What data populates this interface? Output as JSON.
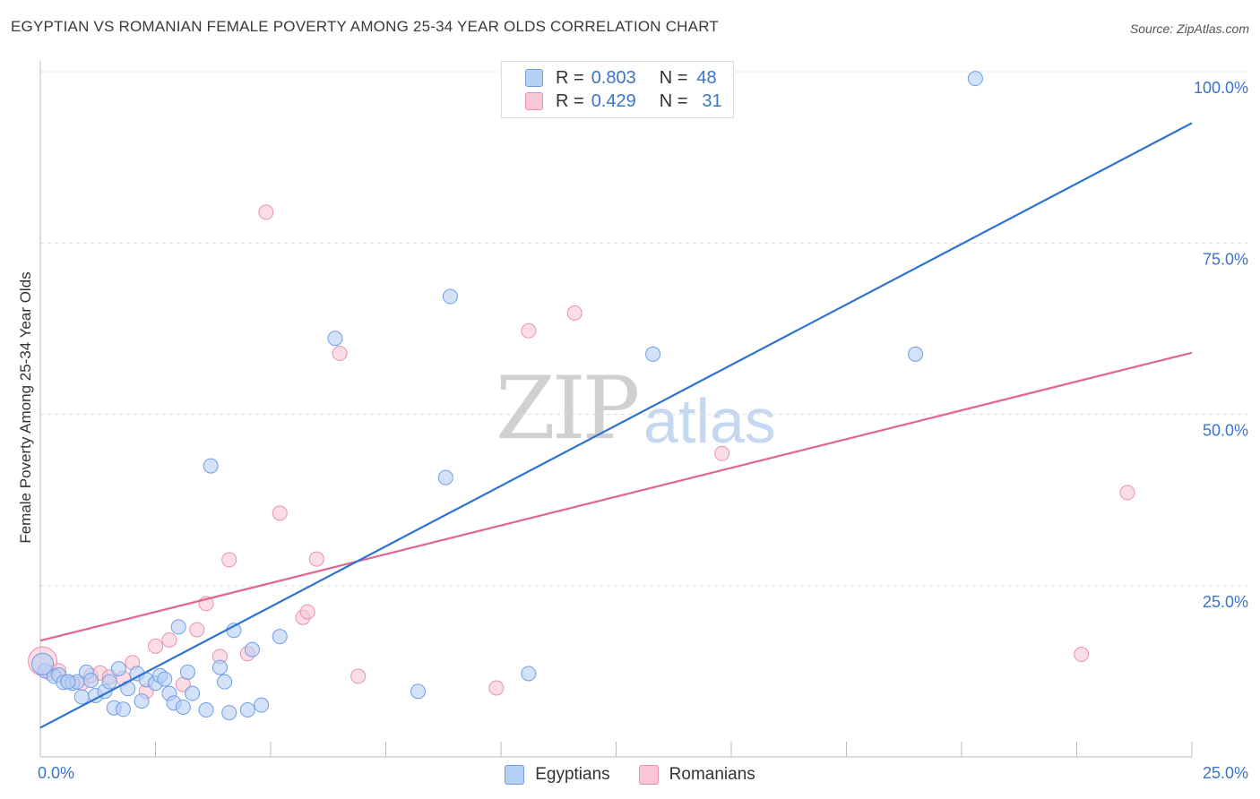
{
  "title": "EGYPTIAN VS ROMANIAN FEMALE POVERTY AMONG 25-34 YEAR OLDS CORRELATION CHART",
  "source": "Source: ZipAtlas.com",
  "legend": {
    "rows": [
      {
        "r_label": "R =",
        "r_value": "0.803",
        "n_label": "N =",
        "n_value": "48"
      },
      {
        "r_label": "R =",
        "r_value": "0.429",
        "n_label": "N =",
        "n_value": "31"
      }
    ]
  },
  "watermark": {
    "zip": "ZIP",
    "atlas": "atlas"
  },
  "colors": {
    "blue_fill": "#b5cff5",
    "blue_stroke": "#6f9ee3",
    "blue_line": "#2e73d2",
    "pink_fill": "#f9c6d6",
    "pink_stroke": "#eb8fb0",
    "pink_line": "#e0668f",
    "axis_label": "#3a74c9",
    "grid": "#dcdcdc"
  },
  "chart_data": {
    "type": "scatter",
    "title": "EGYPTIAN VS ROMANIAN FEMALE POVERTY AMONG 25-34 YEAR OLDS CORRELATION CHART",
    "xlabel": "",
    "ylabel": "Female Poverty Among 25-34 Year Olds",
    "xlim": [
      0,
      25
    ],
    "ylim": [
      0,
      100
    ],
    "x_tick_labels": [
      "0.0%",
      "25.0%"
    ],
    "y_tick_labels": [
      "25.0%",
      "50.0%",
      "75.0%",
      "100.0%"
    ],
    "y_ticks": [
      25,
      50,
      75,
      100
    ],
    "grid": true,
    "legend_placement": "top-center",
    "series": [
      {
        "name": "Egyptians",
        "color": "blue",
        "r": 0.803,
        "n": 48,
        "trend": {
          "x": [
            0,
            25
          ],
          "y": [
            4.3,
            92.5
          ]
        },
        "points": [
          [
            0.1,
            12.6
          ],
          [
            0.3,
            11.8
          ],
          [
            0.4,
            12.0
          ],
          [
            0.5,
            10.9
          ],
          [
            0.7,
            10.8
          ],
          [
            0.8,
            11.0
          ],
          [
            0.9,
            8.8
          ],
          [
            1.0,
            12.4
          ],
          [
            1.1,
            11.2
          ],
          [
            1.2,
            9.0
          ],
          [
            1.4,
            9.6
          ],
          [
            1.5,
            11.0
          ],
          [
            1.6,
            7.2
          ],
          [
            1.7,
            12.9
          ],
          [
            1.8,
            7.0
          ],
          [
            1.9,
            10.0
          ],
          [
            2.1,
            12.2
          ],
          [
            2.2,
            8.2
          ],
          [
            2.3,
            11.3
          ],
          [
            2.5,
            10.8
          ],
          [
            2.6,
            11.9
          ],
          [
            2.7,
            11.4
          ],
          [
            2.8,
            9.3
          ],
          [
            2.9,
            7.9
          ],
          [
            3.0,
            19.0
          ],
          [
            3.1,
            7.3
          ],
          [
            3.2,
            12.4
          ],
          [
            3.3,
            9.3
          ],
          [
            3.6,
            6.9
          ],
          [
            3.7,
            42.5
          ],
          [
            3.9,
            13.1
          ],
          [
            4.0,
            11.0
          ],
          [
            4.1,
            6.5
          ],
          [
            4.2,
            18.5
          ],
          [
            4.5,
            6.9
          ],
          [
            4.6,
            15.7
          ],
          [
            4.8,
            7.6
          ],
          [
            5.2,
            17.6
          ],
          [
            6.4,
            61.1
          ],
          [
            8.2,
            9.6
          ],
          [
            8.8,
            40.8
          ],
          [
            8.9,
            67.2
          ],
          [
            10.6,
            12.2
          ],
          [
            13.3,
            58.8
          ],
          [
            19.0,
            58.8
          ],
          [
            20.3,
            99.0
          ],
          [
            0.05,
            13.6
          ],
          [
            0.6,
            11.0
          ]
        ]
      },
      {
        "name": "Romanians",
        "color": "pink",
        "r": 0.429,
        "n": 31,
        "trend": {
          "x": [
            0,
            25
          ],
          "y": [
            17.0,
            59.0
          ]
        },
        "points": [
          [
            0.05,
            14.0
          ],
          [
            0.2,
            12.3
          ],
          [
            0.4,
            12.6
          ],
          [
            0.6,
            11.0
          ],
          [
            0.9,
            10.8
          ],
          [
            1.1,
            11.9
          ],
          [
            1.3,
            12.3
          ],
          [
            1.5,
            11.7
          ],
          [
            1.8,
            11.5
          ],
          [
            2.0,
            13.8
          ],
          [
            2.3,
            9.6
          ],
          [
            2.5,
            16.2
          ],
          [
            2.8,
            17.1
          ],
          [
            3.1,
            10.6
          ],
          [
            3.4,
            18.6
          ],
          [
            3.6,
            22.4
          ],
          [
            3.9,
            14.7
          ],
          [
            4.1,
            28.8
          ],
          [
            4.5,
            15.1
          ],
          [
            4.9,
            79.5
          ],
          [
            5.2,
            35.6
          ],
          [
            5.7,
            20.4
          ],
          [
            5.8,
            21.2
          ],
          [
            6.0,
            28.9
          ],
          [
            6.5,
            58.9
          ],
          [
            6.9,
            11.8
          ],
          [
            9.9,
            10.1
          ],
          [
            10.6,
            62.2
          ],
          [
            11.6,
            64.8
          ],
          [
            14.8,
            44.3
          ],
          [
            22.6,
            15.0
          ]
        ],
        "extra_points": [
          [
            23.6,
            38.6
          ]
        ]
      }
    ]
  },
  "bottom_legend": {
    "egyptians": "Egyptians",
    "romanians": "Romanians"
  }
}
